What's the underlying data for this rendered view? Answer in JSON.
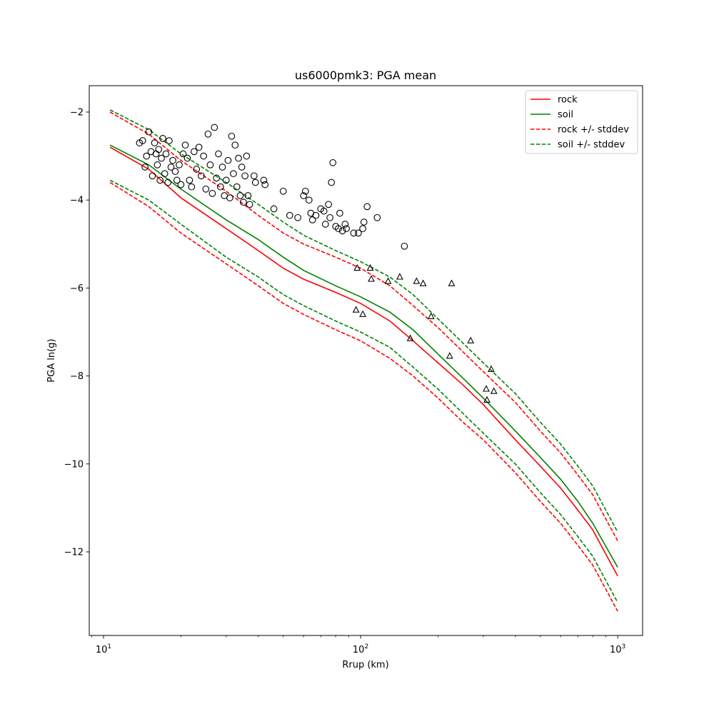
{
  "chart_data": {
    "type": "line",
    "title": "us6000pmk3: PGA mean",
    "xlabel": "Rrup (km)",
    "ylabel": "PGA ln(g)",
    "xscale": "log",
    "xlim": [
      8.8,
      1250
    ],
    "ylim": [
      -13.9,
      -1.4
    ],
    "xticks": [
      {
        "value": 10,
        "base": "10",
        "exp": "1"
      },
      {
        "value": 100,
        "base": "10",
        "exp": "2"
      },
      {
        "value": 1000,
        "base": "10",
        "exp": "3"
      }
    ],
    "yticks": [
      {
        "value": -2,
        "label": "−2"
      },
      {
        "value": -4,
        "label": "−4"
      },
      {
        "value": -6,
        "label": "−6"
      },
      {
        "value": -8,
        "label": "−8"
      },
      {
        "value": -10,
        "label": "−10"
      },
      {
        "value": -12,
        "label": "−12"
      }
    ],
    "grid": false,
    "legend_position": "top-right",
    "series": [
      {
        "name": "rock",
        "color": "#ff0000",
        "style": "solid",
        "x": [
          10.6,
          15,
          20,
          30,
          40,
          50,
          60,
          80,
          100,
          130,
          160,
          200,
          250,
          300,
          400,
          500,
          600,
          700,
          800,
          1000
        ],
        "y": [
          -2.8,
          -3.3,
          -3.95,
          -4.65,
          -5.15,
          -5.55,
          -5.8,
          -6.1,
          -6.35,
          -6.75,
          -7.2,
          -7.7,
          -8.2,
          -8.65,
          -9.45,
          -10.05,
          -10.55,
          -11.05,
          -11.5,
          -12.55
        ]
      },
      {
        "name": "soil",
        "color": "#008000",
        "style": "solid",
        "x": [
          10.6,
          15,
          20,
          30,
          40,
          50,
          60,
          80,
          100,
          130,
          160,
          200,
          250,
          300,
          400,
          500,
          600,
          700,
          800,
          1000
        ],
        "y": [
          -2.75,
          -3.2,
          -3.75,
          -4.45,
          -4.9,
          -5.3,
          -5.6,
          -5.95,
          -6.2,
          -6.55,
          -6.95,
          -7.5,
          -8.05,
          -8.5,
          -9.25,
          -9.85,
          -10.35,
          -10.85,
          -11.35,
          -12.35
        ]
      },
      {
        "name": "rock +/- stddev",
        "color": "#ff0000",
        "style": "dashed",
        "x": [
          10.6,
          15,
          20,
          30,
          40,
          50,
          60,
          80,
          100,
          130,
          160,
          200,
          250,
          300,
          400,
          500,
          600,
          700,
          800,
          1000
        ],
        "y": [
          -2.0,
          -2.5,
          -3.1,
          -3.8,
          -4.35,
          -4.75,
          -5.0,
          -5.3,
          -5.55,
          -5.95,
          -6.4,
          -6.9,
          -7.45,
          -7.9,
          -8.6,
          -9.25,
          -9.75,
          -10.25,
          -10.7,
          -11.75
        ]
      },
      {
        "name": "",
        "color": "#ff0000",
        "style": "dashed",
        "x": [
          10.6,
          15,
          20,
          30,
          40,
          50,
          60,
          80,
          100,
          130,
          160,
          200,
          250,
          300,
          400,
          500,
          600,
          700,
          800,
          1000
        ],
        "y": [
          -3.6,
          -4.15,
          -4.75,
          -5.45,
          -5.95,
          -6.35,
          -6.6,
          -6.95,
          -7.2,
          -7.6,
          -8.0,
          -8.5,
          -9.05,
          -9.45,
          -10.2,
          -10.85,
          -11.35,
          -11.85,
          -12.3,
          -13.35
        ]
      },
      {
        "name": "soil +/- stddev",
        "color": "#008000",
        "style": "dashed",
        "x": [
          10.6,
          15,
          20,
          30,
          40,
          50,
          60,
          80,
          100,
          130,
          160,
          200,
          250,
          300,
          400,
          500,
          600,
          700,
          800,
          1000
        ],
        "y": [
          -1.95,
          -2.4,
          -2.95,
          -3.6,
          -4.1,
          -4.5,
          -4.8,
          -5.15,
          -5.4,
          -5.75,
          -6.15,
          -6.7,
          -7.25,
          -7.7,
          -8.4,
          -9.05,
          -9.55,
          -10.05,
          -10.5,
          -11.55
        ]
      },
      {
        "name": "",
        "color": "#008000",
        "style": "dashed",
        "x": [
          10.6,
          15,
          20,
          30,
          40,
          50,
          60,
          80,
          100,
          130,
          160,
          200,
          250,
          300,
          400,
          500,
          600,
          700,
          800,
          1000
        ],
        "y": [
          -3.55,
          -4.0,
          -4.55,
          -5.3,
          -5.75,
          -6.15,
          -6.4,
          -6.75,
          -7.0,
          -7.35,
          -7.8,
          -8.3,
          -8.85,
          -9.3,
          -10.0,
          -10.65,
          -11.15,
          -11.65,
          -12.1,
          -13.15
        ]
      }
    ],
    "observations_circle": [
      [
        13.8,
        -2.7
      ],
      [
        14.2,
        -2.65
      ],
      [
        14.5,
        -3.25
      ],
      [
        14.7,
        -3.0
      ],
      [
        15.0,
        -2.45
      ],
      [
        15.3,
        -2.9
      ],
      [
        15.5,
        -3.45
      ],
      [
        15.8,
        -2.7
      ],
      [
        16.0,
        -2.95
      ],
      [
        16.2,
        -3.2
      ],
      [
        16.4,
        -2.85
      ],
      [
        16.6,
        -3.55
      ],
      [
        16.8,
        -3.05
      ],
      [
        17.0,
        -2.6
      ],
      [
        17.3,
        -3.4
      ],
      [
        17.5,
        -2.95
      ],
      [
        17.8,
        -3.6
      ],
      [
        18.0,
        -2.65
      ],
      [
        18.3,
        -3.25
      ],
      [
        18.6,
        -3.1
      ],
      [
        19.0,
        -3.35
      ],
      [
        19.3,
        -3.55
      ],
      [
        19.7,
        -3.2
      ],
      [
        20.0,
        -3.65
      ],
      [
        20.4,
        -2.95
      ],
      [
        20.8,
        -2.75
      ],
      [
        21.2,
        -3.05
      ],
      [
        21.6,
        -3.55
      ],
      [
        22.0,
        -3.7
      ],
      [
        22.5,
        -2.9
      ],
      [
        23.0,
        -3.3
      ],
      [
        23.5,
        -2.8
      ],
      [
        24.0,
        -3.45
      ],
      [
        24.5,
        -3.0
      ],
      [
        25.0,
        -3.75
      ],
      [
        25.5,
        -2.5
      ],
      [
        26.0,
        -3.2
      ],
      [
        26.5,
        -3.85
      ],
      [
        27.0,
        -2.35
      ],
      [
        27.5,
        -3.5
      ],
      [
        28.0,
        -2.95
      ],
      [
        28.5,
        -3.7
      ],
      [
        29.0,
        -3.25
      ],
      [
        29.5,
        -3.9
      ],
      [
        30.0,
        -3.55
      ],
      [
        30.5,
        -3.1
      ],
      [
        31.0,
        -3.95
      ],
      [
        31.5,
        -2.55
      ],
      [
        32.0,
        -3.4
      ],
      [
        32.5,
        -2.75
      ],
      [
        33.0,
        -3.7
      ],
      [
        33.5,
        -3.05
      ],
      [
        34.0,
        -3.9
      ],
      [
        34.5,
        -3.25
      ],
      [
        35.0,
        -4.05
      ],
      [
        35.5,
        -3.45
      ],
      [
        36.0,
        -3.0
      ],
      [
        36.5,
        -3.9
      ],
      [
        37.0,
        -4.1
      ],
      [
        38.5,
        -3.45
      ],
      [
        39.0,
        -3.6
      ],
      [
        42.0,
        -3.55
      ],
      [
        42.5,
        -3.65
      ],
      [
        46.0,
        -4.2
      ],
      [
        50.0,
        -3.8
      ],
      [
        53.0,
        -4.35
      ],
      [
        57.0,
        -4.4
      ],
      [
        60.0,
        -3.9
      ],
      [
        61.0,
        -3.8
      ],
      [
        63.0,
        -4.0
      ],
      [
        64.0,
        -4.3
      ],
      [
        65.0,
        -4.45
      ],
      [
        67.0,
        -4.35
      ],
      [
        70.0,
        -4.2
      ],
      [
        72.0,
        -4.25
      ],
      [
        73.0,
        -4.55
      ],
      [
        75.0,
        -4.1
      ],
      [
        76.0,
        -4.4
      ],
      [
        77.0,
        -3.6
      ],
      [
        78.0,
        -3.15
      ],
      [
        80.0,
        -4.6
      ],
      [
        82.0,
        -4.65
      ],
      [
        83.0,
        -4.3
      ],
      [
        85.0,
        -4.7
      ],
      [
        87.0,
        -4.55
      ],
      [
        88.0,
        -4.65
      ],
      [
        94.0,
        -4.75
      ],
      [
        98.0,
        -4.75
      ],
      [
        102.0,
        -4.65
      ],
      [
        103.0,
        -4.5
      ],
      [
        106.0,
        -4.15
      ],
      [
        116.0,
        -4.4
      ],
      [
        148.0,
        -5.05
      ]
    ],
    "observations_triangle": [
      [
        97,
        -5.55
      ],
      [
        96,
        -6.5
      ],
      [
        102,
        -6.6
      ],
      [
        109,
        -5.55
      ],
      [
        110,
        -5.8
      ],
      [
        128,
        -5.85
      ],
      [
        142,
        -5.75
      ],
      [
        156,
        -7.15
      ],
      [
        165,
        -5.85
      ],
      [
        175,
        -5.9
      ],
      [
        188,
        -6.65
      ],
      [
        222,
        -7.55
      ],
      [
        226,
        -5.9
      ],
      [
        268,
        -7.2
      ],
      [
        308,
        -8.3
      ],
      [
        310,
        -8.55
      ],
      [
        322,
        -7.85
      ],
      [
        330,
        -8.35
      ]
    ]
  }
}
